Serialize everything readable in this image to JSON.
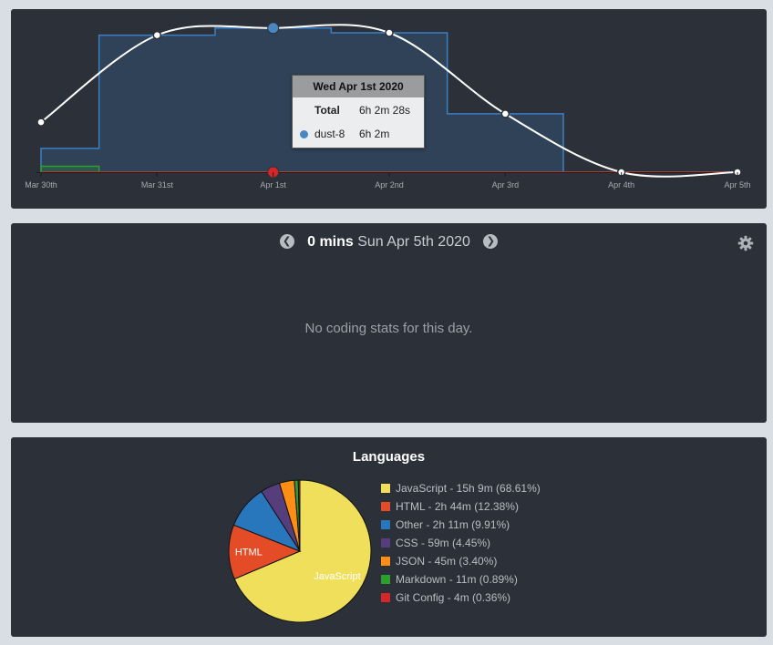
{
  "timeline": {
    "x_labels": [
      "Mar 30th",
      "Mar 31st",
      "Apr 1st",
      "Apr 2nd",
      "Apr 3rd",
      "Apr 4th",
      "Apr 5th"
    ],
    "tooltip": {
      "title": "Wed Apr 1st 2020",
      "total_label": "Total",
      "total_value": "6h 2m 28s",
      "project_name": "dust-8",
      "project_value": "6h 2m",
      "project_color": "#4a87c0"
    }
  },
  "chart_data": {
    "type": "area",
    "x": [
      "Mar 30th",
      "Mar 31st",
      "Apr 1st",
      "Apr 2nd",
      "Apr 3rd",
      "Apr 4th",
      "Apr 5th"
    ],
    "series": [
      {
        "name": "dust-8",
        "kind": "step-area",
        "color": "#3b7fc4",
        "values": [
          1.0,
          5.75,
          6.05,
          5.85,
          2.45,
          0,
          0
        ]
      },
      {
        "kind": "step-area",
        "color": "#2ca02c",
        "values": [
          0.25,
          0,
          0,
          0,
          0,
          0,
          0
        ]
      },
      {
        "name": "Total",
        "kind": "smooth-line",
        "color": "#ffffff",
        "values": [
          2.1,
          5.75,
          6.05,
          5.85,
          2.45,
          0,
          0
        ],
        "highlight_index": 2
      }
    ],
    "ylim": [
      0,
      6.5
    ],
    "grid": false,
    "legend": "none"
  },
  "day": {
    "mins": "0 mins",
    "date": "Sun Apr 5th 2020",
    "empty_message": "No coding stats for this day.",
    "prev_icon": "chevron-left-icon",
    "next_icon": "chevron-right-icon",
    "settings_icon": "gear-icon"
  },
  "languages": {
    "title": "Languages",
    "pie_labels": {
      "javascript": "JavaScript",
      "html": "HTML"
    },
    "items": [
      {
        "label": "JavaScript - 15h 9m (68.61%)",
        "pct": 68.61,
        "color": "#f0df5b"
      },
      {
        "label": "HTML - 2h 44m (12.38%)",
        "pct": 12.38,
        "color": "#e34c26"
      },
      {
        "label": "Other - 2h 11m (9.91%)",
        "pct": 9.91,
        "color": "#2877bd"
      },
      {
        "label": "CSS - 59m (4.45%)",
        "pct": 4.45,
        "color": "#563d7c"
      },
      {
        "label": "JSON - 45m (3.40%)",
        "pct": 3.4,
        "color": "#fd8d14"
      },
      {
        "label": "Markdown - 11m (0.89%)",
        "pct": 0.89,
        "color": "#2ca02c"
      },
      {
        "label": "Git Config - 4m (0.36%)",
        "pct": 0.36,
        "color": "#d62728"
      }
    ]
  }
}
